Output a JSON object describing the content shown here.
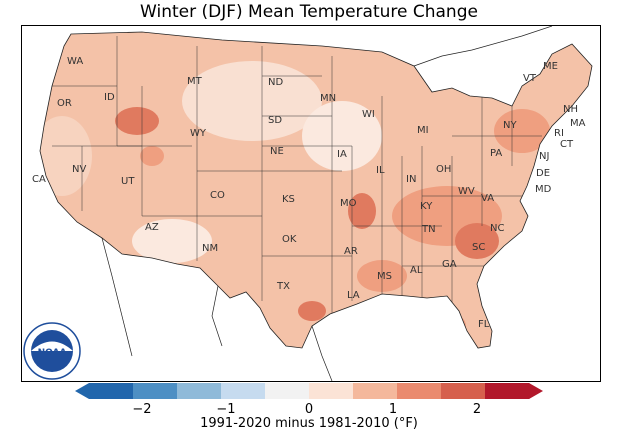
{
  "title": "Winter (DJF) Mean Temperature Change",
  "colorbar": {
    "label": "1991-2020 minus 1981-2010 (°F)",
    "ticks": [
      "−2",
      "−1",
      "0",
      "1",
      "2"
    ],
    "tick_values": [
      -2,
      -1,
      0,
      1,
      2
    ],
    "range": [
      -2.5,
      2.5
    ],
    "extend": "both",
    "colors": [
      "#2166ac",
      "#4d8fc4",
      "#8fbad9",
      "#c6dbef",
      "#f2f2f2",
      "#fbe3d6",
      "#f4b89c",
      "#ea8a6e",
      "#d6604d",
      "#b2182b"
    ]
  },
  "logo": {
    "text": "NOAA"
  },
  "state_labels": [
    "WA",
    "OR",
    "CA",
    "NV",
    "ID",
    "MT",
    "WY",
    "UT",
    "CO",
    "AZ",
    "NM",
    "ND",
    "SD",
    "NE",
    "KS",
    "OK",
    "TX",
    "MN",
    "IA",
    "MO",
    "AR",
    "LA",
    "WI",
    "IL",
    "MS",
    "MI",
    "IN",
    "KY",
    "TN",
    "AL",
    "OH",
    "GA",
    "FL",
    "WV",
    "VA",
    "NC",
    "SC",
    "PA",
    "NY",
    "VT",
    "NH",
    "ME",
    "MA",
    "RI",
    "CT",
    "NJ",
    "DE",
    "MD"
  ],
  "colors": {
    "land_base": "#f4c2a8",
    "warm_light": "#f7d3bf",
    "warm_mid": "#ef9f80",
    "warm_dark": "#e07a5f",
    "near_zero": "#fbe9df",
    "border": "#222222"
  }
}
